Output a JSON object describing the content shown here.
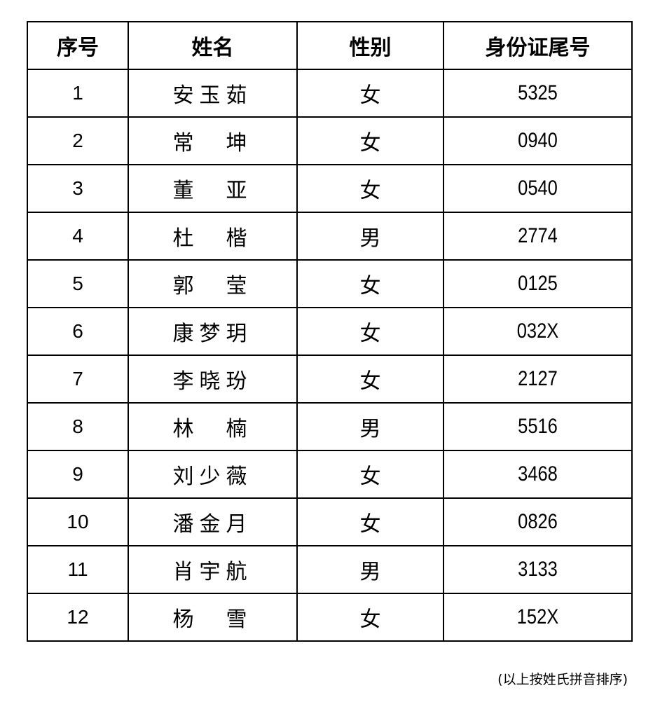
{
  "table": {
    "headers": [
      "序号",
      "姓名",
      "性别",
      "身份证尾号"
    ],
    "rows": [
      [
        "1",
        "安玉茹",
        "女",
        "5325"
      ],
      [
        "2",
        "常　坤",
        "女",
        "0940"
      ],
      [
        "3",
        "董　亚",
        "女",
        "0540"
      ],
      [
        "4",
        "杜　楷",
        "男",
        "2774"
      ],
      [
        "5",
        "郭　莹",
        "女",
        "0125"
      ],
      [
        "6",
        "康梦玥",
        "女",
        "032X"
      ],
      [
        "7",
        "李晓玢",
        "女",
        "2127"
      ],
      [
        "8",
        "林　楠",
        "男",
        "5516"
      ],
      [
        "9",
        "刘少薇",
        "女",
        "3468"
      ],
      [
        "10",
        "潘金月",
        "女",
        "0826"
      ],
      [
        "11",
        "肖宇航",
        "男",
        "3133"
      ],
      [
        "12",
        "杨　雪",
        "女",
        "152X"
      ]
    ]
  },
  "note": "(以上按姓氏拼音排序)"
}
